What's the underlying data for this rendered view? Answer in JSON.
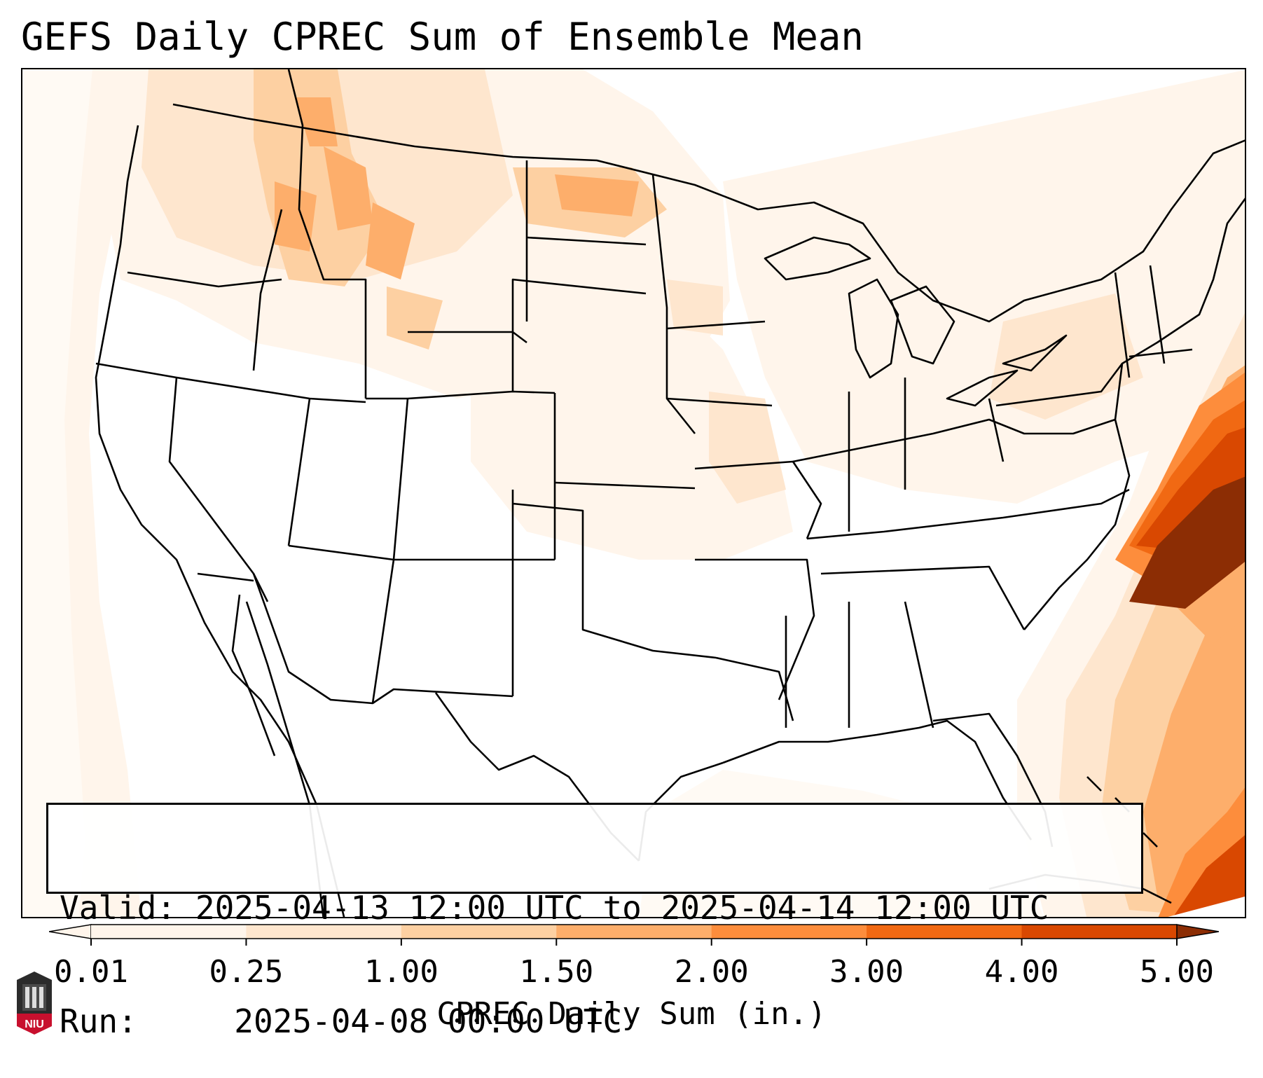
{
  "title": "GEFS Daily CPREC Sum of Ensemble Mean",
  "info": {
    "valid_label": "Valid:",
    "valid_value": "2025-04-13 12:00 UTC to 2025-04-14 12:00 UTC",
    "run_label": "Run:",
    "run_value": "2025-04-08 00:00 UTC"
  },
  "colorbar": {
    "label": "CPREC Daily Sum (in.)",
    "ticks": [
      "0.01",
      "0.25",
      "1.00",
      "1.50",
      "2.00",
      "3.00",
      "4.00",
      "5.00"
    ],
    "colors": [
      "#fff5eb",
      "#fee6ce",
      "#fdd0a2",
      "#fdae6b",
      "#fd8d3c",
      "#f16913",
      "#d94801",
      "#8c2d04"
    ],
    "extend": "both"
  },
  "logo": {
    "text": "NIU",
    "name": "niu-logo-icon",
    "color": "#c8102e"
  },
  "colors": {
    "map_background": "#ffffff",
    "border_lines": "#000000"
  }
}
